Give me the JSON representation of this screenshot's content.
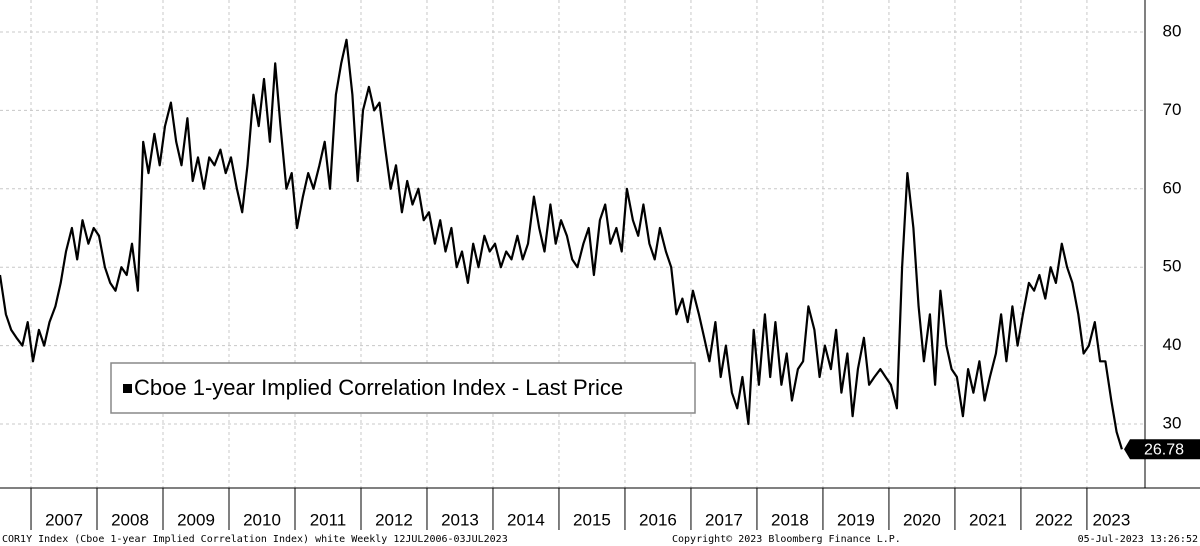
{
  "chart_data": {
    "type": "line",
    "series": [
      {
        "name": "Cboe 1-year Implied Correlation Index - Last Price",
        "color": "#000000",
        "values": [
          49,
          44,
          42,
          41,
          40,
          43,
          38,
          42,
          40,
          43,
          45,
          48,
          52,
          55,
          51,
          56,
          53,
          55,
          54,
          50,
          48,
          47,
          50,
          49,
          53,
          47,
          66,
          62,
          67,
          63,
          68,
          71,
          66,
          63,
          69,
          61,
          64,
          60,
          64,
          63,
          65,
          62,
          64,
          60,
          57,
          63,
          72,
          68,
          74,
          66,
          76,
          68,
          60,
          62,
          55,
          59,
          62,
          60,
          63,
          66,
          60,
          72,
          76,
          79,
          72,
          61,
          70,
          73,
          70,
          71,
          65,
          60,
          63,
          57,
          61,
          58,
          60,
          56,
          57,
          53,
          56,
          52,
          55,
          50,
          52,
          48,
          53,
          50,
          54,
          52,
          53,
          50,
          52,
          51,
          54,
          51,
          53,
          59,
          55,
          52,
          58,
          53,
          56,
          54,
          51,
          50,
          53,
          55,
          49,
          56,
          58,
          53,
          55,
          52,
          60,
          56,
          54,
          58,
          53,
          51,
          55,
          52,
          50,
          44,
          46,
          43,
          47,
          44,
          41,
          38,
          43,
          36,
          40,
          34,
          32,
          36,
          30,
          42,
          35,
          44,
          36,
          43,
          35,
          39,
          33,
          37,
          38,
          45,
          42,
          36,
          40,
          37,
          42,
          34,
          39,
          31,
          37,
          41,
          35,
          36,
          37,
          36,
          35,
          32,
          50,
          62,
          55,
          45,
          38,
          44,
          35,
          47,
          40,
          37,
          36,
          31,
          37,
          34,
          38,
          33,
          36,
          39,
          44,
          38,
          45,
          40,
          44,
          48,
          47,
          49,
          46,
          50,
          48,
          53,
          50,
          48,
          44,
          39,
          40,
          43,
          38,
          38,
          33,
          29,
          26.78
        ]
      }
    ],
    "x": [
      2006.53,
      2006.62,
      2006.7,
      2006.78,
      2006.87,
      2006.95,
      2007.03,
      2007.12,
      2007.2,
      2007.28,
      2007.37,
      2007.45,
      2007.53,
      2007.62,
      2007.7,
      2007.78,
      2007.87,
      2007.95,
      2008.03,
      2008.12,
      2008.2,
      2008.28,
      2008.37,
      2008.45,
      2008.53,
      2008.62,
      2008.7,
      2008.78,
      2008.87,
      2008.95,
      2009.03,
      2009.12,
      2009.2,
      2009.28,
      2009.37,
      2009.45,
      2009.53,
      2009.62,
      2009.7,
      2009.78,
      2009.87,
      2009.95,
      2010.03,
      2010.12,
      2010.2,
      2010.28,
      2010.37,
      2010.45,
      2010.53,
      2010.62,
      2010.7,
      2010.78,
      2010.87,
      2010.95,
      2011.03,
      2011.12,
      2011.2,
      2011.28,
      2011.37,
      2011.45,
      2011.53,
      2011.62,
      2011.7,
      2011.78,
      2011.87,
      2011.95,
      2012.03,
      2012.12,
      2012.2,
      2012.28,
      2012.37,
      2012.45,
      2012.53,
      2012.62,
      2012.7,
      2012.78,
      2012.87,
      2012.95,
      2013.03,
      2013.12,
      2013.2,
      2013.28,
      2013.37,
      2013.45,
      2013.53,
      2013.62,
      2013.7,
      2013.78,
      2013.87,
      2013.95,
      2014.03,
      2014.12,
      2014.2,
      2014.28,
      2014.37,
      2014.45,
      2014.53,
      2014.62,
      2014.7,
      2014.78,
      2014.87,
      2014.95,
      2015.03,
      2015.12,
      2015.2,
      2015.28,
      2015.37,
      2015.45,
      2015.53,
      2015.62,
      2015.7,
      2015.78,
      2015.87,
      2015.95,
      2016.03,
      2016.12,
      2016.2,
      2016.28,
      2016.37,
      2016.45,
      2016.53,
      2016.62,
      2016.7,
      2016.78,
      2016.87,
      2016.95,
      2017.03,
      2017.12,
      2017.2,
      2017.28,
      2017.37,
      2017.45,
      2017.53,
      2017.62,
      2017.7,
      2017.78,
      2017.87,
      2017.95,
      2018.03,
      2018.12,
      2018.2,
      2018.28,
      2018.37,
      2018.45,
      2018.53,
      2018.62,
      2018.7,
      2018.78,
      2018.87,
      2018.95,
      2019.03,
      2019.12,
      2019.2,
      2019.28,
      2019.37,
      2019.45,
      2019.53,
      2019.62,
      2019.7,
      2019.78,
      2019.87,
      2019.95,
      2020.03,
      2020.12,
      2020.2,
      2020.28,
      2020.37,
      2020.45,
      2020.53,
      2020.62,
      2020.7,
      2020.78,
      2020.87,
      2020.95,
      2021.03,
      2021.12,
      2021.2,
      2021.28,
      2021.37,
      2021.45,
      2021.53,
      2021.62,
      2021.7,
      2021.78,
      2021.87,
      2021.95,
      2022.03,
      2022.12,
      2022.2,
      2022.28,
      2022.37,
      2022.45,
      2022.53,
      2022.62,
      2022.7,
      2022.78,
      2022.87,
      2022.95,
      2023.03,
      2023.12,
      2023.2,
      2023.28,
      2023.37,
      2023.45,
      2023.53
    ],
    "xlim": [
      2006.53,
      2023.88
    ],
    "xticks": [
      2007,
      2008,
      2009,
      2010,
      2011,
      2012,
      2013,
      2014,
      2015,
      2016,
      2017,
      2018,
      2019,
      2020,
      2021,
      2022,
      2023
    ],
    "ylim": [
      21.84,
      84.08
    ],
    "yticks": [
      30,
      40,
      50,
      60,
      70,
      80
    ],
    "grid": true,
    "legend": "lower left",
    "footer_left": "COR1Y Index (Cboe 1-year Implied Correlation Index) white  Weekly 12JUL2006-03JUL2023",
    "footer_center": "Copyright© 2023 Bloomberg Finance L.P.",
    "footer_right": "05-Jul-2023 13:26:52"
  }
}
